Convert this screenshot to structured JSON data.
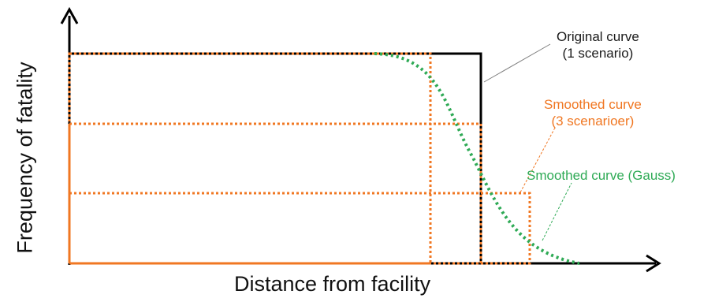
{
  "axes": {
    "y_label": "Frequency of fatality",
    "x_label": "Distance from facility"
  },
  "annotations": {
    "original": [
      "Original curve",
      "(1 scenario)"
    ],
    "smoothed_3": [
      "Smoothed curve",
      "(3 scenarioer)"
    ],
    "smoothed_gauss": "Smoothed curve (Gauss)"
  },
  "colors": {
    "axis": "#000000",
    "original_curve": "#000000",
    "smoothed_3_curve": "#f07722",
    "gauss_curve": "#2eaa55",
    "leader_line": "#7f7f7f"
  }
}
